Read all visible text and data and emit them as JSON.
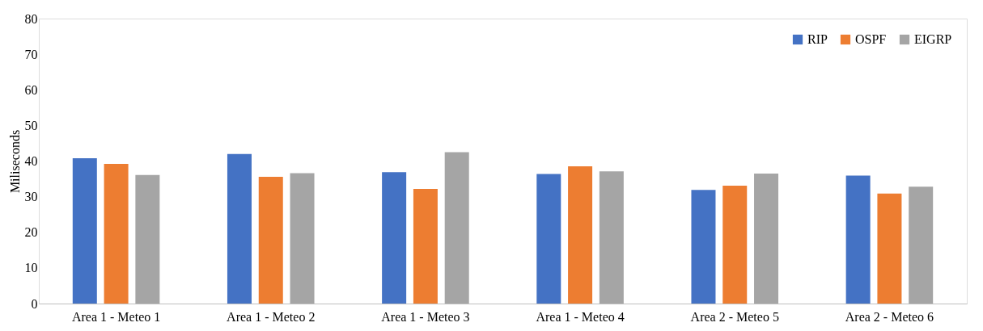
{
  "chart_data": {
    "type": "bar",
    "ylabel": "Miliseconds",
    "categories": [
      "Area 1 - Meteo 1",
      "Area 1 - Meteo 2",
      "Area 1 - Meteo 3",
      "Area 1 - Meteo 4",
      "Area 2 - Meteo 5",
      "Area 2 - Meteo 6"
    ],
    "series": [
      {
        "name": "RIP",
        "color": "#4472c4",
        "values": [
          40.8,
          42.0,
          36.9,
          36.4,
          31.9,
          35.9
        ]
      },
      {
        "name": "OSPF",
        "color": "#ed7d31",
        "values": [
          39.2,
          35.6,
          32.2,
          38.5,
          33.1,
          30.9
        ]
      },
      {
        "name": "EIGRP",
        "color": "#a5a5a5",
        "values": [
          36.1,
          36.6,
          42.5,
          37.1,
          36.5,
          32.8
        ]
      }
    ],
    "ylim": [
      0,
      80
    ],
    "yticks": [
      0,
      10,
      20,
      30,
      40,
      50,
      60,
      70,
      80
    ],
    "grid": false,
    "legend": "top right"
  }
}
